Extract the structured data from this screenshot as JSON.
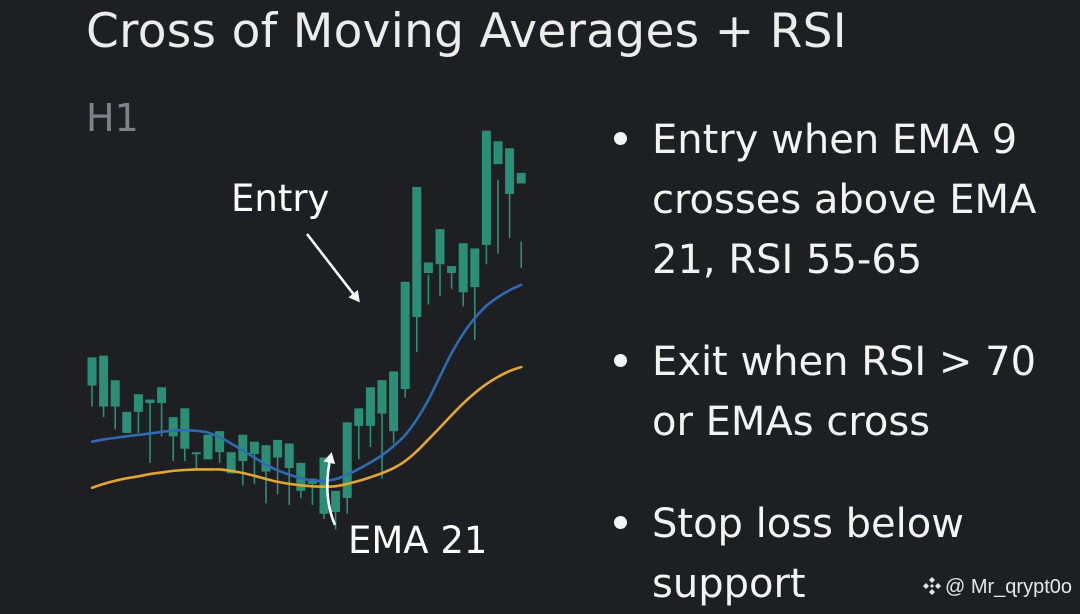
{
  "title": "Cross of Moving Averages + RSI",
  "timeframe": "H1",
  "bullets": [
    "Entry when EMA 9 crosses above EMA 21, RSI 55-65",
    "Exit when RSI > 70 or EMAs cross",
    "Stop loss below support"
  ],
  "watermark": "@ Mr_ɋrypt0o",
  "colors": {
    "background": "#1e1f23",
    "bullish": "#2a8f76",
    "bearish": "#f0532b",
    "ema_fast": "#2f6bb3",
    "ema_slow": "#e3a632",
    "annotation": "#ffffff"
  },
  "chart_data": {
    "type": "candlestick",
    "ohlc_columns": [
      "open",
      "high",
      "low",
      "close"
    ],
    "candles": [
      [
        72,
        82,
        60,
        88
      ],
      [
        60,
        75,
        54,
        89
      ],
      [
        60,
        74,
        47,
        75
      ],
      [
        45,
        56,
        45,
        57
      ],
      [
        57,
        62,
        45,
        67
      ],
      [
        62,
        62,
        28,
        64
      ],
      [
        62,
        62,
        43,
        71
      ],
      [
        43,
        48,
        29,
        54
      ],
      [
        36,
        59,
        29,
        59
      ],
      [
        34,
        34,
        24,
        34
      ],
      [
        30,
        40,
        30,
        44
      ],
      [
        34,
        45,
        28,
        46
      ],
      [
        22,
        32,
        22,
        34
      ],
      [
        29,
        43,
        15,
        44
      ],
      [
        33,
        34,
        16,
        40
      ],
      [
        23,
        38,
        5,
        38
      ],
      [
        31,
        41,
        10,
        41
      ],
      [
        25,
        39,
        4,
        39
      ],
      [
        12,
        28,
        8,
        28
      ],
      [
        16,
        16,
        4,
        19
      ],
      [
        -1,
        30,
        -4,
        31
      ],
      [
        0,
        12,
        -10,
        12
      ],
      [
        8,
        47,
        -1,
        51
      ],
      [
        49,
        52,
        30,
        59
      ],
      [
        49,
        62,
        37,
        71
      ],
      [
        56,
        59,
        19,
        75
      ],
      [
        46,
        80,
        39,
        80
      ],
      [
        70,
        117,
        65,
        131
      ],
      [
        111,
        161,
        91,
        185
      ],
      [
        136,
        135,
        118,
        142
      ],
      [
        141,
        141,
        123,
        161
      ],
      [
        136,
        136,
        127,
        140
      ],
      [
        125,
        133,
        117,
        153
      ],
      [
        128,
        133,
        98,
        150
      ],
      [
        152,
        199,
        141,
        217
      ],
      [
        198,
        189,
        147,
        211
      ],
      [
        181,
        187,
        156,
        207
      ],
      [
        187,
        154,
        139,
        193
      ]
    ],
    "series": [
      {
        "name": "EMA 21",
        "role": "ema_fast",
        "values": [
          40,
          41.3,
          42.2,
          43.1,
          43.9,
          44.7,
          45.6,
          46.3,
          46.6,
          46.2,
          45.2,
          42.6,
          39.0,
          35.0,
          31.0,
          27.0,
          23.7,
          21.3,
          19.3,
          18.0,
          17.7,
          18.7,
          21.2,
          24.5,
          28.2,
          32.3,
          37.5,
          43.8,
          52.7,
          63.8,
          77.2,
          90.4,
          101.5,
          110.3,
          117.4,
          122.3,
          126.2,
          129.3
        ]
      },
      {
        "name": "",
        "role": "ema_slow",
        "values": [
          13.8,
          16.0,
          17.8,
          19.2,
          20.3,
          21.6,
          22.5,
          23.4,
          23.9,
          24.2,
          24.2,
          24.2,
          23.4,
          22.2,
          20.6,
          18.8,
          17.2,
          16.0,
          15.2,
          14.6,
          14.4,
          14.7,
          16.0,
          17.7,
          19.8,
          22.1,
          25.0,
          29.0,
          34.6,
          41.3,
          48.1,
          55.1,
          61.8,
          67.7,
          72.8,
          76.9,
          80.2,
          82.5
        ]
      }
    ],
    "annotations": [
      {
        "label": "Entry",
        "target_candle": 22,
        "kind": "arrow"
      },
      {
        "label": "EMA 21",
        "target_candle": 18,
        "kind": "arrow"
      }
    ],
    "timeframe": "H1",
    "grid": false,
    "legend": "none"
  }
}
